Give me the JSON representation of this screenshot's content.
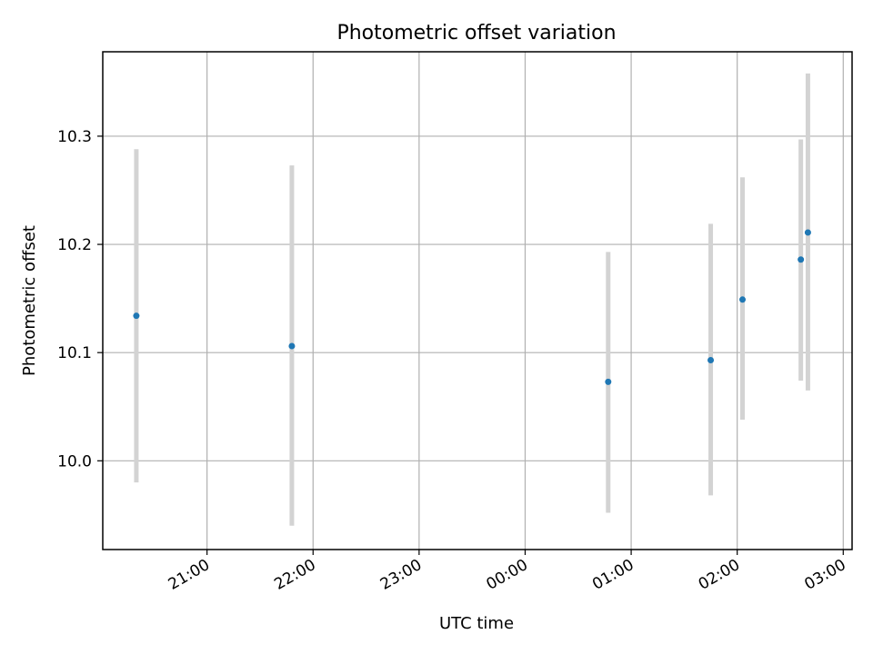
{
  "chart_data": {
    "type": "scatter",
    "title": "Photometric offset variation",
    "xlabel": "UTC time",
    "ylabel": "Photometric offset",
    "x_ticks": [
      "21:00",
      "22:00",
      "23:00",
      "00:00",
      "01:00",
      "02:00",
      "03:00"
    ],
    "y_ticks": [
      "10.0",
      "10.1",
      "10.2",
      "10.3"
    ],
    "xlim": [
      "20:01",
      "03:05"
    ],
    "ylim": [
      9.918,
      10.378
    ],
    "grid": true,
    "series": [
      {
        "points": [
          {
            "x": "20:20",
            "y": 10.134,
            "yerr_low": 9.98,
            "yerr_high": 10.288
          },
          {
            "x": "21:48",
            "y": 10.106,
            "yerr_low": 9.94,
            "yerr_high": 10.273
          },
          {
            "x": "00:47",
            "y": 10.073,
            "yerr_low": 9.952,
            "yerr_high": 10.193
          },
          {
            "x": "01:45",
            "y": 10.093,
            "yerr_low": 9.968,
            "yerr_high": 10.219
          },
          {
            "x": "02:03",
            "y": 10.149,
            "yerr_low": 10.038,
            "yerr_high": 10.262
          },
          {
            "x": "02:36",
            "y": 10.186,
            "yerr_low": 10.074,
            "yerr_high": 10.297
          },
          {
            "x": "02:40",
            "y": 10.211,
            "yerr_low": 10.065,
            "yerr_high": 10.358
          }
        ]
      }
    ],
    "colors": {
      "marker": "#1f77b4",
      "errorbar": "#d3d3d3",
      "grid": "#b0b0b0",
      "axes": "#000000"
    }
  }
}
